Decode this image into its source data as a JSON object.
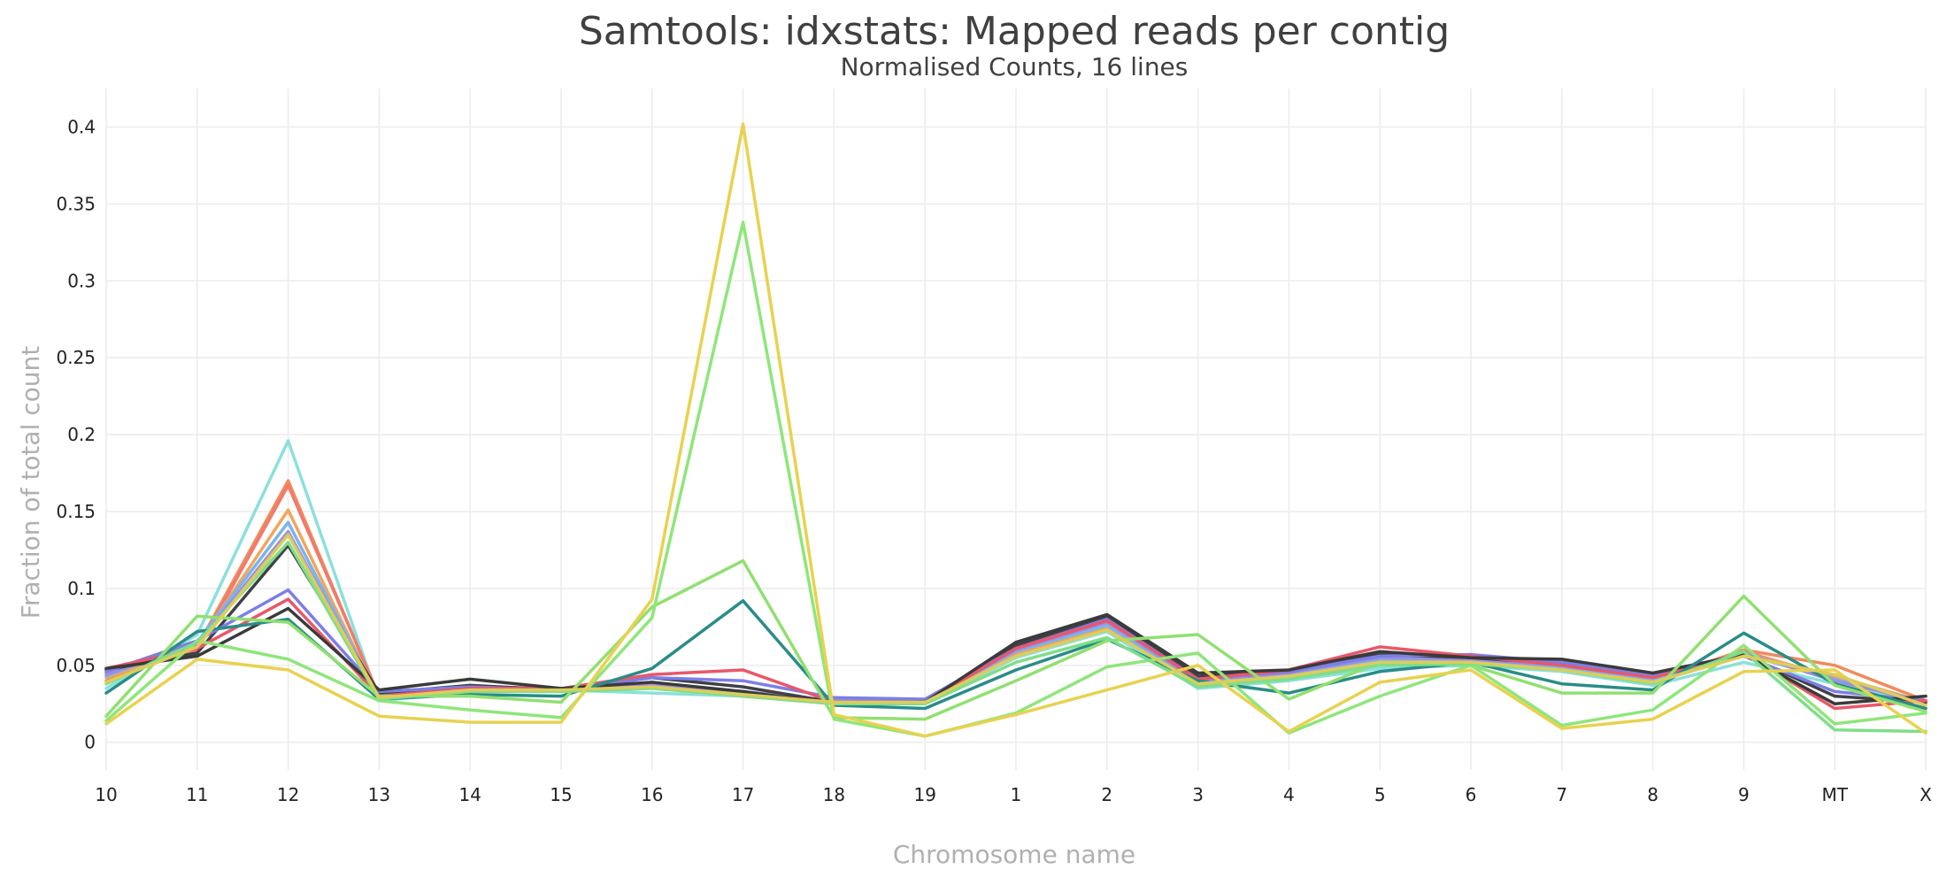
{
  "chart_data": {
    "type": "line",
    "title": "Samtools: idxstats: Mapped reads per contig",
    "subtitle": "Normalised Counts, 16 lines",
    "xlabel": "Chromosome name",
    "ylabel": "Fraction of total count",
    "categories": [
      "10",
      "11",
      "12",
      "13",
      "14",
      "15",
      "16",
      "17",
      "18",
      "19",
      "1",
      "2",
      "3",
      "4",
      "5",
      "6",
      "7",
      "8",
      "9",
      "MT",
      "X"
    ],
    "ylim": [
      -0.018,
      0.425
    ],
    "yticks": [
      0,
      0.05,
      0.1,
      0.15,
      0.2,
      0.25,
      0.3,
      0.35,
      0.4
    ],
    "ytick_labels": [
      "0",
      "0.05",
      "0.1",
      "0.15",
      "0.2",
      "0.25",
      "0.3",
      "0.35",
      "0.4"
    ],
    "grid": true,
    "legend": "none",
    "series": [
      {
        "color": "#8be0dd",
        "values": [
          0.035,
          0.07,
          0.196,
          0.027,
          0.033,
          0.034,
          0.032,
          0.03,
          0.027,
          0.025,
          0.055,
          0.072,
          0.035,
          0.04,
          0.048,
          0.05,
          0.046,
          0.037,
          0.052,
          0.038,
          0.025
        ]
      },
      {
        "color": "#f08b5c",
        "values": [
          0.04,
          0.062,
          0.17,
          0.029,
          0.035,
          0.034,
          0.036,
          0.03,
          0.025,
          0.026,
          0.058,
          0.075,
          0.038,
          0.042,
          0.052,
          0.053,
          0.048,
          0.04,
          0.06,
          0.05,
          0.027
        ]
      },
      {
        "color": "#f07b6d",
        "values": [
          0.045,
          0.06,
          0.167,
          0.03,
          0.036,
          0.035,
          0.038,
          0.032,
          0.026,
          0.027,
          0.06,
          0.077,
          0.039,
          0.044,
          0.054,
          0.054,
          0.049,
          0.041,
          0.059,
          0.042,
          0.026
        ]
      },
      {
        "color": "#f2a55a",
        "values": [
          0.042,
          0.063,
          0.151,
          0.028,
          0.034,
          0.034,
          0.036,
          0.031,
          0.026,
          0.026,
          0.057,
          0.074,
          0.038,
          0.043,
          0.053,
          0.052,
          0.048,
          0.04,
          0.058,
          0.043,
          0.026
        ]
      },
      {
        "color": "#7ab4ee",
        "values": [
          0.043,
          0.065,
          0.143,
          0.029,
          0.035,
          0.034,
          0.037,
          0.032,
          0.027,
          0.027,
          0.059,
          0.076,
          0.039,
          0.044,
          0.054,
          0.053,
          0.049,
          0.041,
          0.057,
          0.041,
          0.026
        ]
      },
      {
        "color": "#9c8ee0",
        "values": [
          0.044,
          0.064,
          0.137,
          0.029,
          0.035,
          0.034,
          0.038,
          0.033,
          0.027,
          0.027,
          0.06,
          0.078,
          0.04,
          0.045,
          0.055,
          0.054,
          0.05,
          0.042,
          0.058,
          0.04,
          0.026
        ]
      },
      {
        "color": "#404048",
        "values": [
          0.047,
          0.058,
          0.128,
          0.032,
          0.037,
          0.034,
          0.042,
          0.036,
          0.026,
          0.026,
          0.063,
          0.082,
          0.043,
          0.046,
          0.057,
          0.055,
          0.051,
          0.043,
          0.057,
          0.03,
          0.026
        ]
      },
      {
        "color": "#7b7fe6",
        "values": [
          0.046,
          0.066,
          0.099,
          0.033,
          0.036,
          0.034,
          0.042,
          0.04,
          0.029,
          0.028,
          0.061,
          0.08,
          0.041,
          0.046,
          0.056,
          0.057,
          0.052,
          0.043,
          0.056,
          0.033,
          0.027
        ]
      },
      {
        "color": "#e9576a",
        "values": [
          0.048,
          0.061,
          0.093,
          0.03,
          0.035,
          0.035,
          0.044,
          0.047,
          0.026,
          0.026,
          0.061,
          0.079,
          0.041,
          0.047,
          0.062,
          0.056,
          0.05,
          0.042,
          0.058,
          0.022,
          0.027
        ]
      },
      {
        "color": "#3a3a3a",
        "values": [
          0.048,
          0.056,
          0.087,
          0.034,
          0.041,
          0.035,
          0.039,
          0.033,
          0.025,
          0.026,
          0.065,
          0.083,
          0.045,
          0.047,
          0.059,
          0.055,
          0.054,
          0.045,
          0.057,
          0.025,
          0.03
        ]
      },
      {
        "color": "#2a8c88",
        "values": [
          0.032,
          0.072,
          0.08,
          0.028,
          0.031,
          0.03,
          0.048,
          0.092,
          0.024,
          0.022,
          0.047,
          0.067,
          0.04,
          0.032,
          0.046,
          0.052,
          0.038,
          0.034,
          0.071,
          0.038,
          0.022
        ]
      },
      {
        "color": "#90e070",
        "values": [
          0.017,
          0.082,
          0.078,
          0.03,
          0.03,
          0.026,
          0.088,
          0.118,
          0.016,
          0.015,
          0.04,
          0.066,
          0.07,
          0.028,
          0.052,
          0.05,
          0.032,
          0.032,
          0.095,
          0.037,
          0.02
        ]
      },
      {
        "color": "#8ee67a",
        "values": [
          0.014,
          0.066,
          0.054,
          0.027,
          0.021,
          0.016,
          0.081,
          0.338,
          0.015,
          0.004,
          0.019,
          0.049,
          0.058,
          0.006,
          0.03,
          0.05,
          0.011,
          0.021,
          0.063,
          0.012,
          0.019
        ]
      },
      {
        "color": "#7fde8a",
        "values": [
          0.038,
          0.065,
          0.13,
          0.028,
          0.033,
          0.033,
          0.035,
          0.03,
          0.025,
          0.025,
          0.052,
          0.068,
          0.036,
          0.041,
          0.05,
          0.051,
          0.047,
          0.038,
          0.059,
          0.008,
          0.007
        ]
      },
      {
        "color": "#e8d24f",
        "values": [
          0.012,
          0.054,
          0.047,
          0.017,
          0.013,
          0.013,
          0.093,
          0.402,
          0.018,
          0.004,
          0.018,
          0.034,
          0.05,
          0.007,
          0.039,
          0.047,
          0.009,
          0.015,
          0.046,
          0.047,
          0.006
        ]
      },
      {
        "color": "#dccd5a",
        "values": [
          0.039,
          0.062,
          0.135,
          0.029,
          0.034,
          0.034,
          0.036,
          0.031,
          0.026,
          0.026,
          0.056,
          0.073,
          0.038,
          0.043,
          0.052,
          0.052,
          0.047,
          0.039,
          0.056,
          0.044,
          0.024
        ]
      }
    ]
  }
}
